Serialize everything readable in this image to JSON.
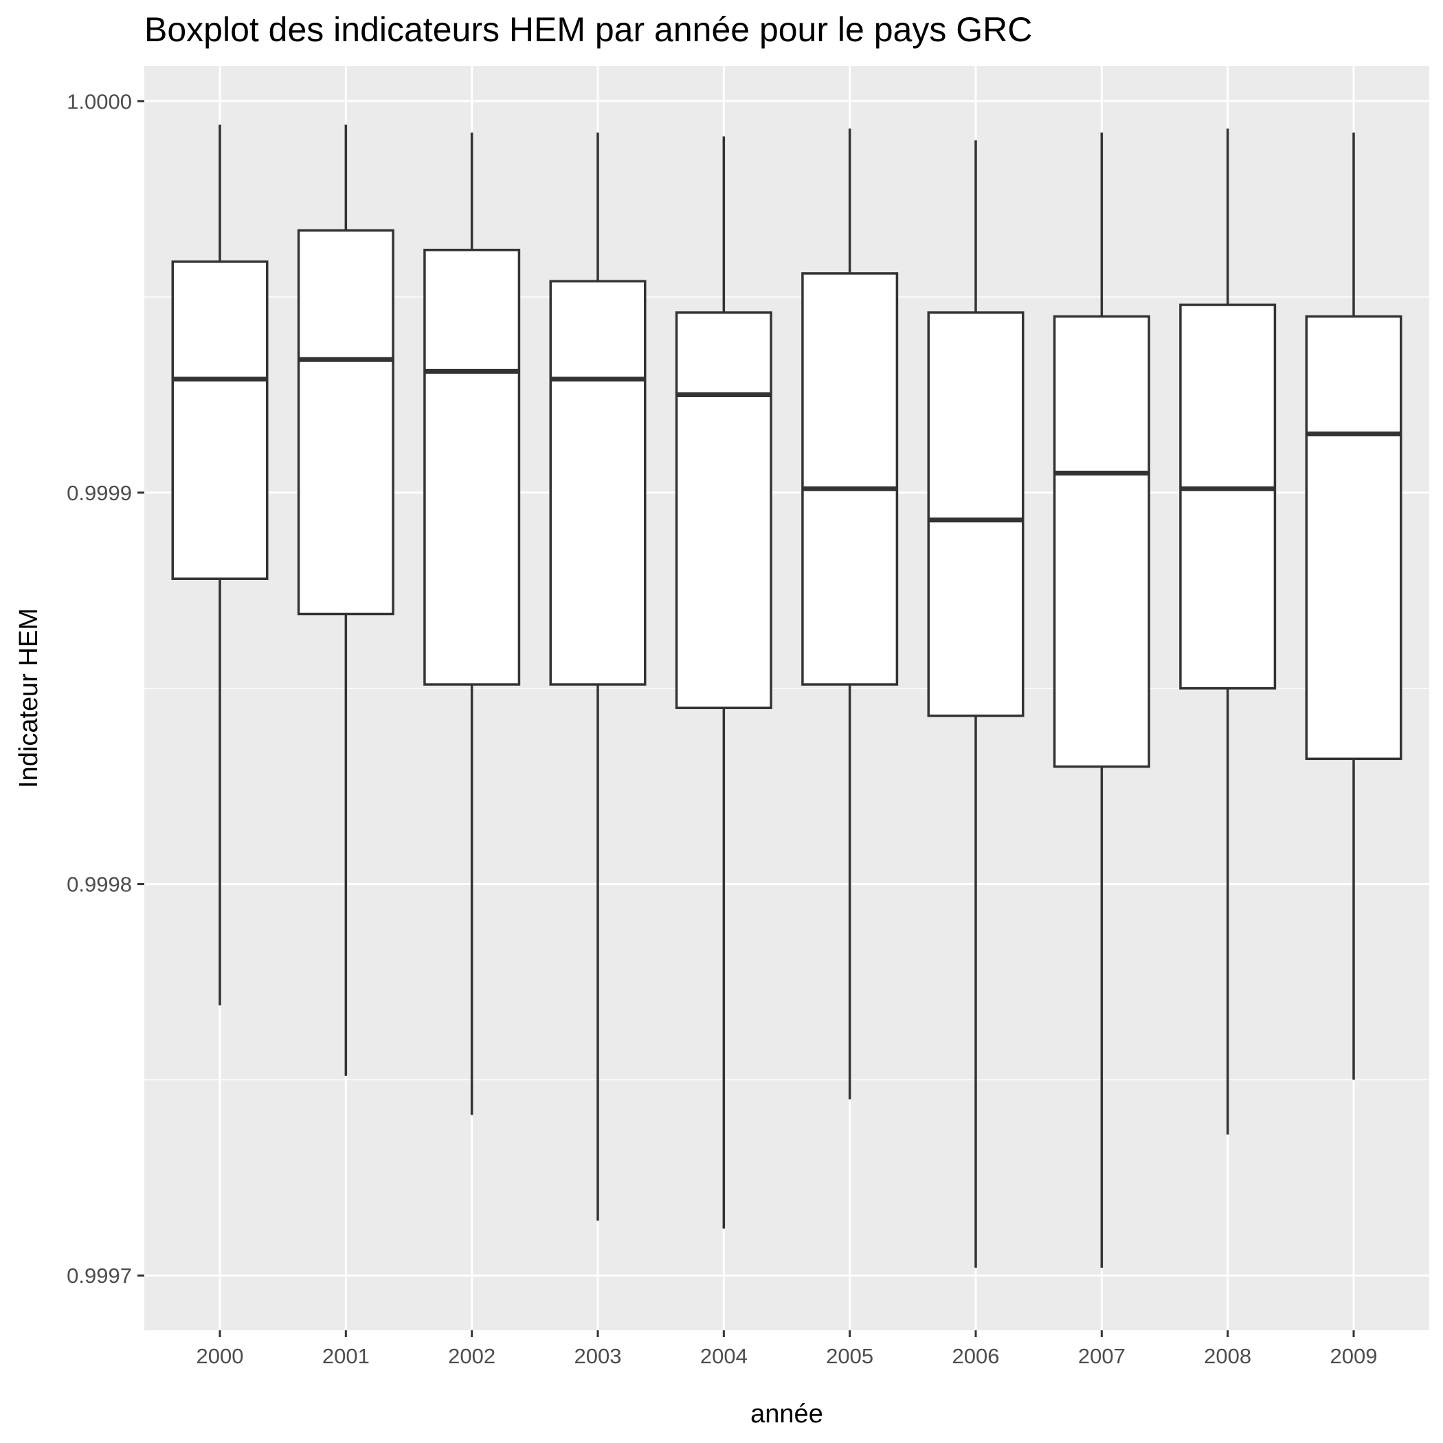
{
  "chart_data": {
    "type": "boxplot",
    "title": "Boxplot des indicateurs HEM par année pour le pays GRC",
    "xlabel": "année",
    "ylabel": "Indicateur HEM",
    "ylim": [
      0.999686,
      1.000009
    ],
    "y_ticks": [
      "0.9997",
      "0.9998",
      "0.9999",
      "1.0000"
    ],
    "y_tick_values": [
      0.9997,
      0.9998,
      0.9999,
      1.0
    ],
    "grid": true,
    "legend": "none",
    "colors": {
      "panel": "#EBEBEB",
      "grid": "#FFFFFF",
      "box_fill": "#FFFFFF",
      "box_line": "#333333",
      "tick_text": "#4D4D4D"
    },
    "categories": [
      "2000",
      "2001",
      "2002",
      "2003",
      "2004",
      "2005",
      "2006",
      "2007",
      "2008",
      "2009"
    ],
    "boxes": [
      {
        "year": "2000",
        "min": 0.999769,
        "q1": 0.999878,
        "median": 0.999929,
        "q3": 0.999959,
        "max": 0.999994
      },
      {
        "year": "2001",
        "min": 0.999751,
        "q1": 0.999869,
        "median": 0.999934,
        "q3": 0.999967,
        "max": 0.999994
      },
      {
        "year": "2002",
        "min": 0.999741,
        "q1": 0.999851,
        "median": 0.999931,
        "q3": 0.999962,
        "max": 0.999992
      },
      {
        "year": "2003",
        "min": 0.999714,
        "q1": 0.999851,
        "median": 0.999929,
        "q3": 0.999954,
        "max": 0.999992
      },
      {
        "year": "2004",
        "min": 0.999712,
        "q1": 0.999845,
        "median": 0.999925,
        "q3": 0.999946,
        "max": 0.999991
      },
      {
        "year": "2005",
        "min": 0.999745,
        "q1": 0.999851,
        "median": 0.999901,
        "q3": 0.999956,
        "max": 0.999993
      },
      {
        "year": "2006",
        "min": 0.999702,
        "q1": 0.999843,
        "median": 0.999893,
        "q3": 0.999946,
        "max": 0.99999
      },
      {
        "year": "2007",
        "min": 0.999702,
        "q1": 0.99983,
        "median": 0.999905,
        "q3": 0.999945,
        "max": 0.999992
      },
      {
        "year": "2008",
        "min": 0.999736,
        "q1": 0.99985,
        "median": 0.999901,
        "q3": 0.999948,
        "max": 0.999993
      },
      {
        "year": "2009",
        "min": 0.99975,
        "q1": 0.999832,
        "median": 0.999915,
        "q3": 0.999945,
        "max": 0.999992
      }
    ]
  }
}
